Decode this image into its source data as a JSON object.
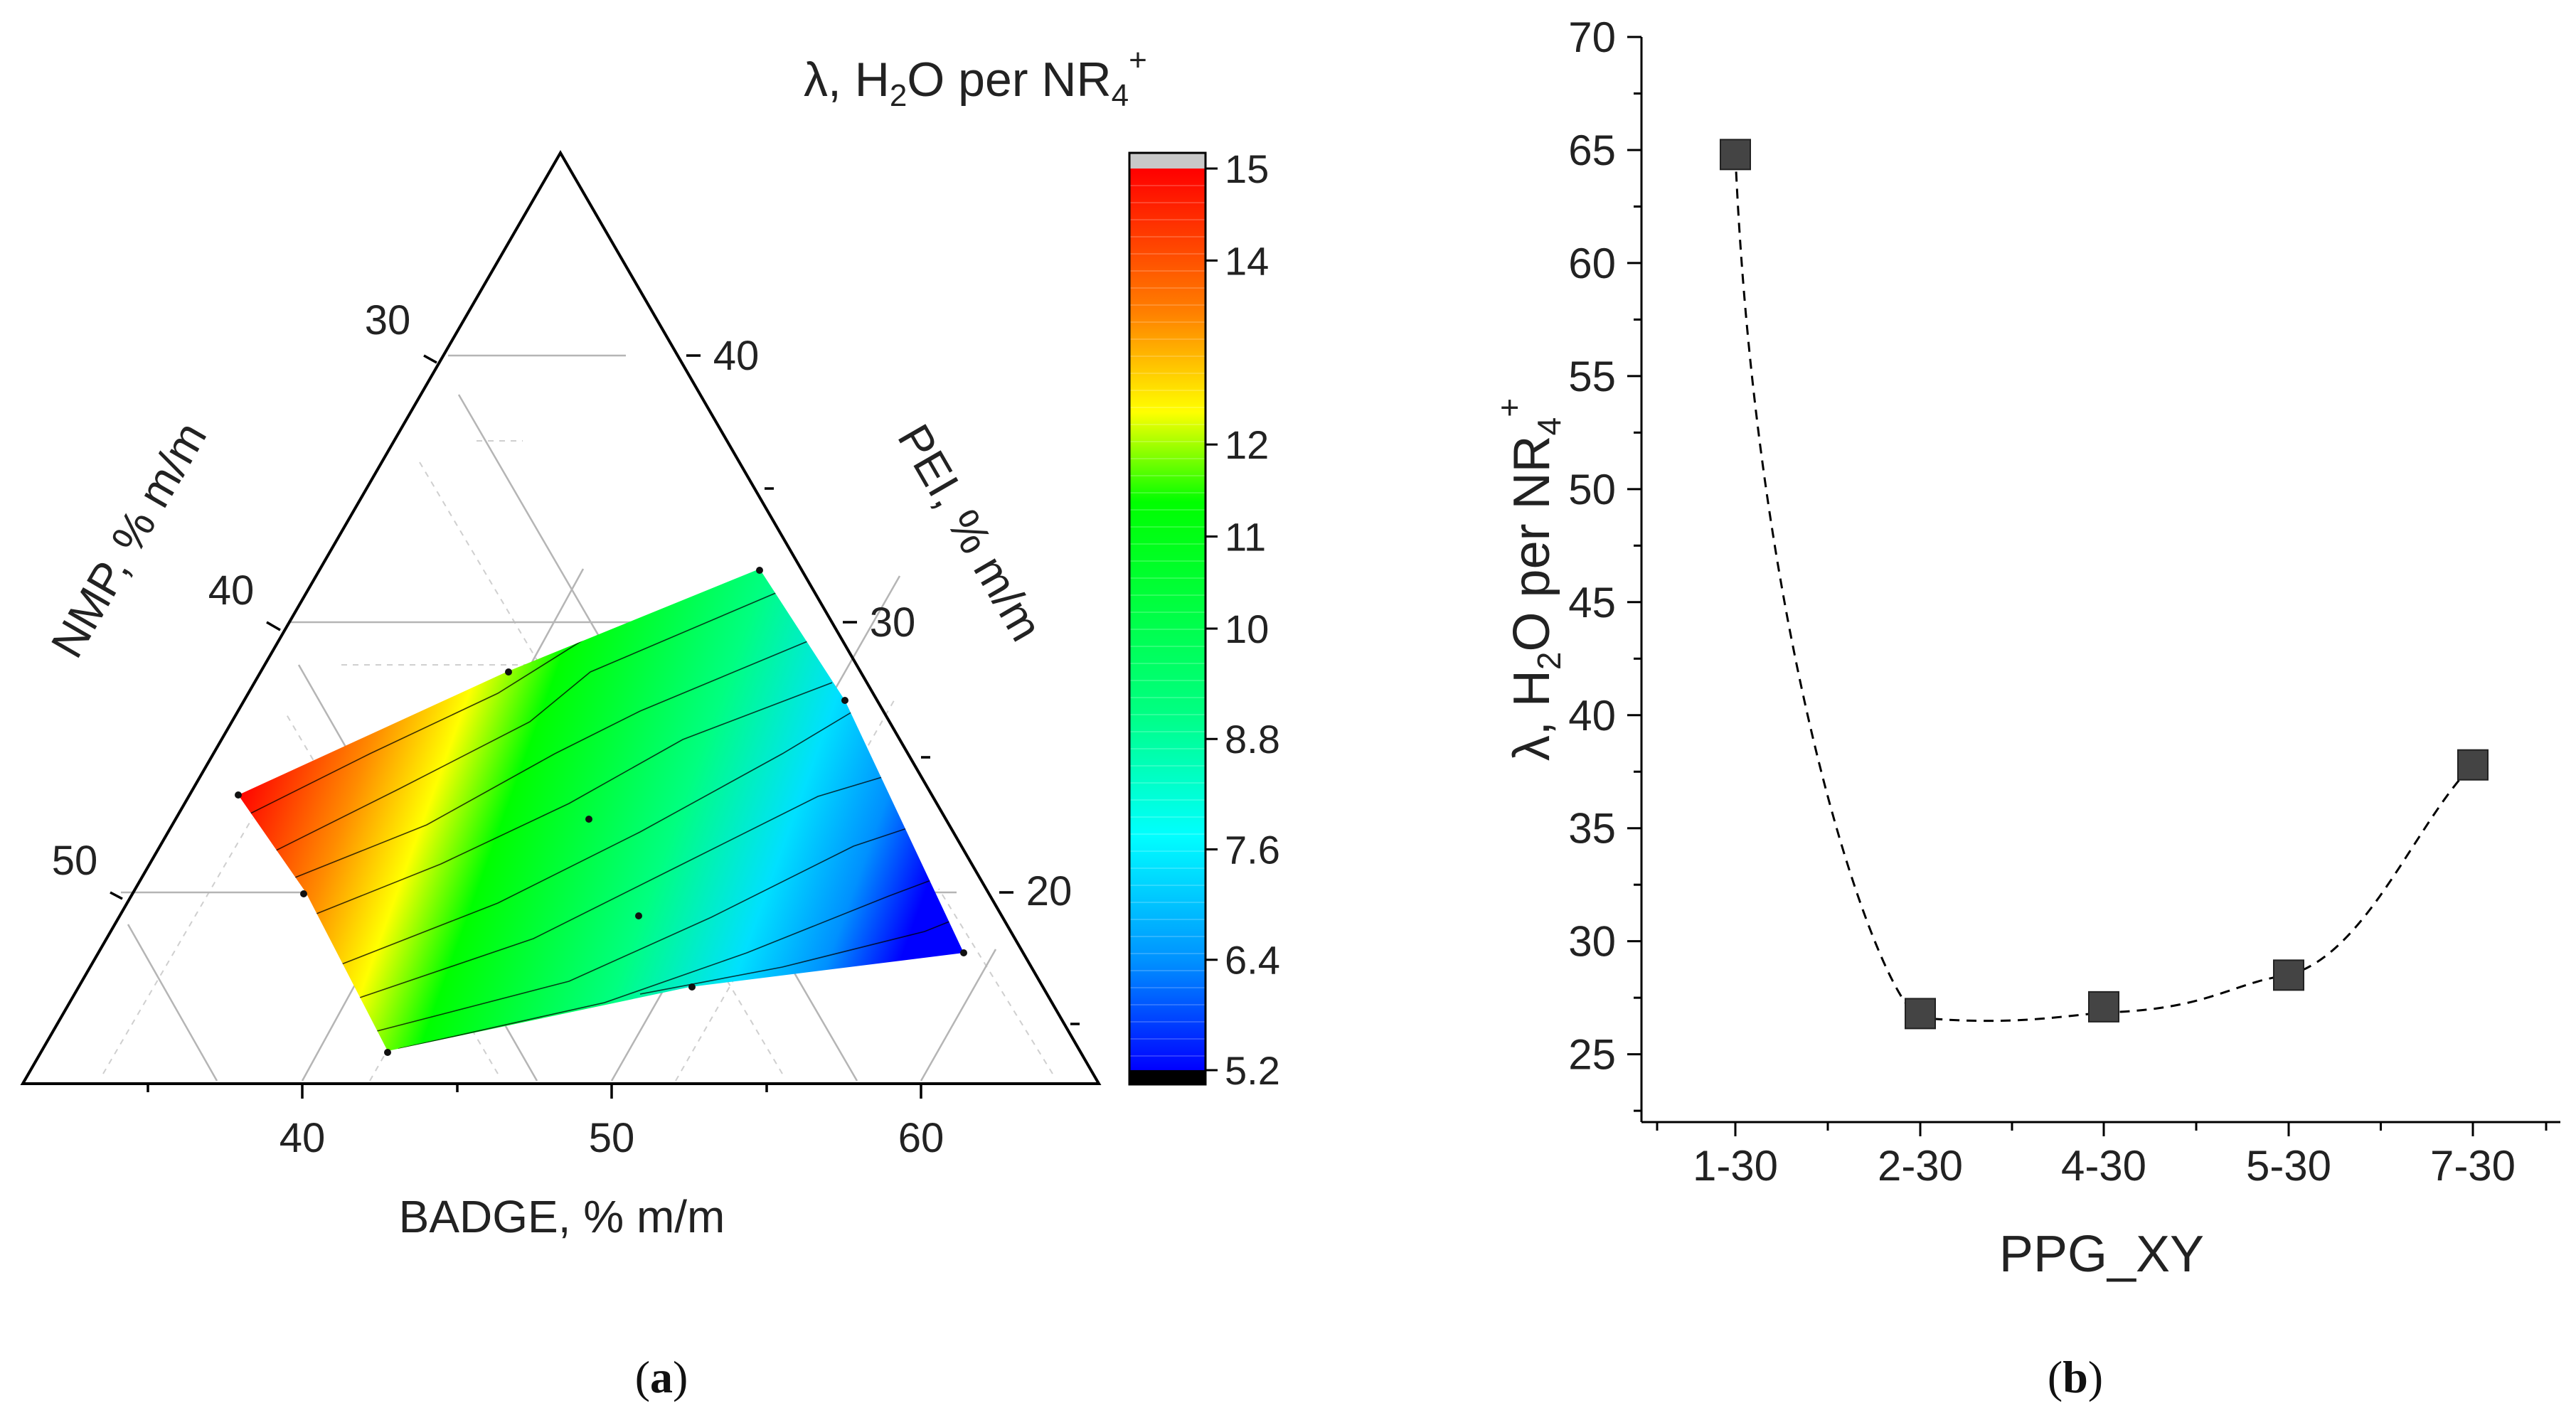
{
  "panel_a": {
    "caption_open": "(",
    "caption_letter": "a",
    "caption_close": ")",
    "colorbar": {
      "title_lambda": "λ, H",
      "title_sub2": "2",
      "title_mid": "O per NR",
      "title_sub4": "4",
      "title_sup": "+",
      "ticks": [
        "15",
        "14",
        "12",
        "11",
        "10",
        "8.8",
        "7.6",
        "6.4",
        "5.2"
      ],
      "colors": {
        "red": "#ff0000",
        "orange": "#ff8000",
        "yellow": "#ffff00",
        "green": "#00ff00",
        "cyan": "#00ffff",
        "blue": "#0000ff",
        "over": "#c8c8c8",
        "under": "#000000"
      }
    }
  },
  "panel_b": {
    "caption_open": "(",
    "caption_letter": "b",
    "caption_close": ")"
  },
  "chart_data": [
    {
      "type": "heatmap",
      "subtype": "ternary contour",
      "title": "λ, H2O per NR4+",
      "axes": {
        "bottom": {
          "label": "BADGE, % m/m",
          "ticks": [
            "40",
            "50",
            "60"
          ]
        },
        "left": {
          "label": "NMP, % m/m",
          "ticks": [
            "30",
            "40",
            "50"
          ]
        },
        "right": {
          "label": "PEI, % m/m",
          "ticks": [
            "40",
            "30",
            "20"
          ]
        }
      },
      "colorbar_range": [
        5.2,
        15
      ],
      "colorbar_ticks": [
        15,
        14,
        12,
        11,
        10,
        8.8,
        7.6,
        6.4,
        5.2
      ],
      "gradient": "red (high λ) at NMP-rich/BADGE-poor corner through yellow and green to blue (low λ) at BADGE-rich corner"
    },
    {
      "type": "scatter",
      "title": "",
      "xlabel": "PPG_XY",
      "ylabel": "λ, H2O per NR4+",
      "ylabel_parts": {
        "lambda": "λ, H",
        "sub2": "2",
        "mid": "O per NR",
        "sub4": "4",
        "sup": "+"
      },
      "categories": [
        "1-30",
        "2-30",
        "4-30",
        "5-30",
        "7-30"
      ],
      "values": [
        64.8,
        26.8,
        27.1,
        28.5,
        37.8
      ],
      "ylim": [
        22,
        70
      ],
      "yticks": [
        "25",
        "30",
        "35",
        "40",
        "45",
        "50",
        "55",
        "60",
        "65",
        "70"
      ],
      "marker": "square",
      "marker_color": "#444444",
      "trend_line": "dashed smooth curve"
    }
  ]
}
